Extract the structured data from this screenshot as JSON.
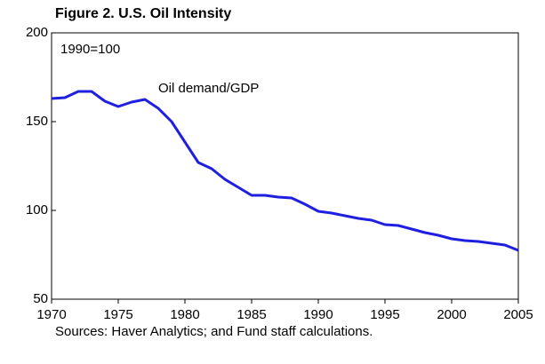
{
  "chart_data": {
    "type": "line",
    "title": "Figure 2. U.S. Oil Intensity",
    "annotations": [
      "1990=100"
    ],
    "source": "Sources: Haver Analytics; and Fund staff calculations.",
    "x": [
      1970,
      1971,
      1972,
      1973,
      1974,
      1975,
      1976,
      1977,
      1978,
      1979,
      1980,
      1981,
      1982,
      1983,
      1984,
      1985,
      1986,
      1987,
      1988,
      1989,
      1990,
      1991,
      1992,
      1993,
      1994,
      1995,
      1996,
      1997,
      1998,
      1999,
      2000,
      2001,
      2002,
      2003,
      2004,
      2005
    ],
    "series": [
      {
        "name": "Oil demand/GDP",
        "color": "#1f1fe0",
        "values": [
          163,
          163.5,
          167,
          167,
          161.5,
          158.5,
          161,
          162.5,
          157.5,
          150,
          138.5,
          127,
          123.5,
          117.5,
          113,
          108.5,
          108.5,
          107.5,
          107,
          103.5,
          99.5,
          98.5,
          97,
          95.5,
          94.5,
          92,
          91.5,
          89.5,
          87.5,
          86,
          84,
          83,
          82.5,
          81.5,
          80.5,
          77.5
        ]
      }
    ],
    "xlim": [
      1970,
      2005
    ],
    "xticks": [
      1970,
      1975,
      1980,
      1985,
      1990,
      1995,
      2000,
      2005
    ],
    "ylim": [
      50,
      200
    ],
    "yticks": [
      50,
      100,
      150,
      200
    ],
    "grid": false
  }
}
